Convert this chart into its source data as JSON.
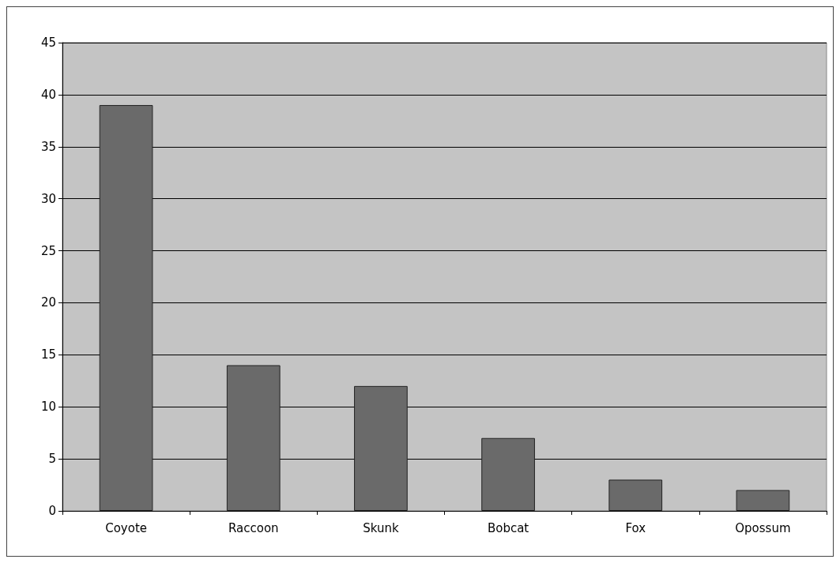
{
  "chart_data": {
    "type": "bar",
    "categories": [
      "Coyote",
      "Raccoon",
      "Skunk",
      "Bobcat",
      "Fox",
      "Opossum"
    ],
    "values": [
      39,
      14,
      12,
      7,
      3,
      2
    ],
    "color": "#6a6a6a",
    "ylim": [
      0,
      45
    ],
    "yticks": [
      0,
      5,
      10,
      15,
      20,
      25,
      30,
      35,
      40,
      45
    ],
    "grid": "y"
  }
}
